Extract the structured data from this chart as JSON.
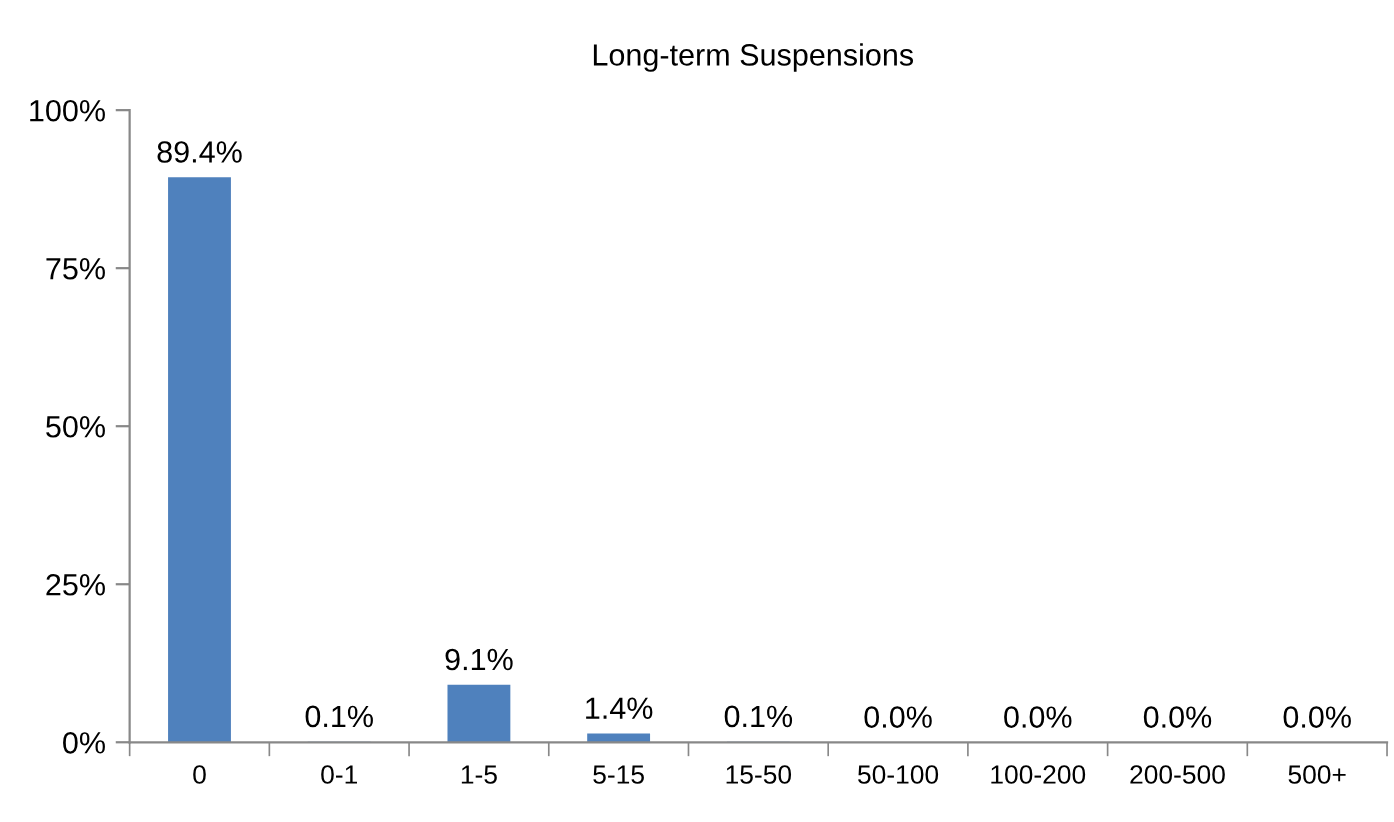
{
  "chart_data": {
    "type": "bar",
    "title": "Long-term Suspensions",
    "categories": [
      "0",
      "0-1",
      "1-5",
      "5-15",
      "15-50",
      "50-100",
      "100-200",
      "200-500",
      "500+"
    ],
    "values": [
      89.4,
      0.1,
      9.1,
      1.4,
      0.1,
      0.0,
      0.0,
      0.0,
      0.0
    ],
    "value_labels": [
      "89.4%",
      "0.1%",
      "9.1%",
      "1.4%",
      "0.1%",
      "0.0%",
      "0.0%",
      "0.0%",
      "0.0%"
    ],
    "color": "#4f81bd",
    "ylim": [
      0,
      100
    ],
    "yticks": [
      {
        "value": 0,
        "label": "0%"
      },
      {
        "value": 25,
        "label": "25%"
      },
      {
        "value": 50,
        "label": "50%"
      },
      {
        "value": 75,
        "label": "75%"
      },
      {
        "value": 100,
        "label": "100%"
      }
    ],
    "grid": false,
    "legend": false
  }
}
